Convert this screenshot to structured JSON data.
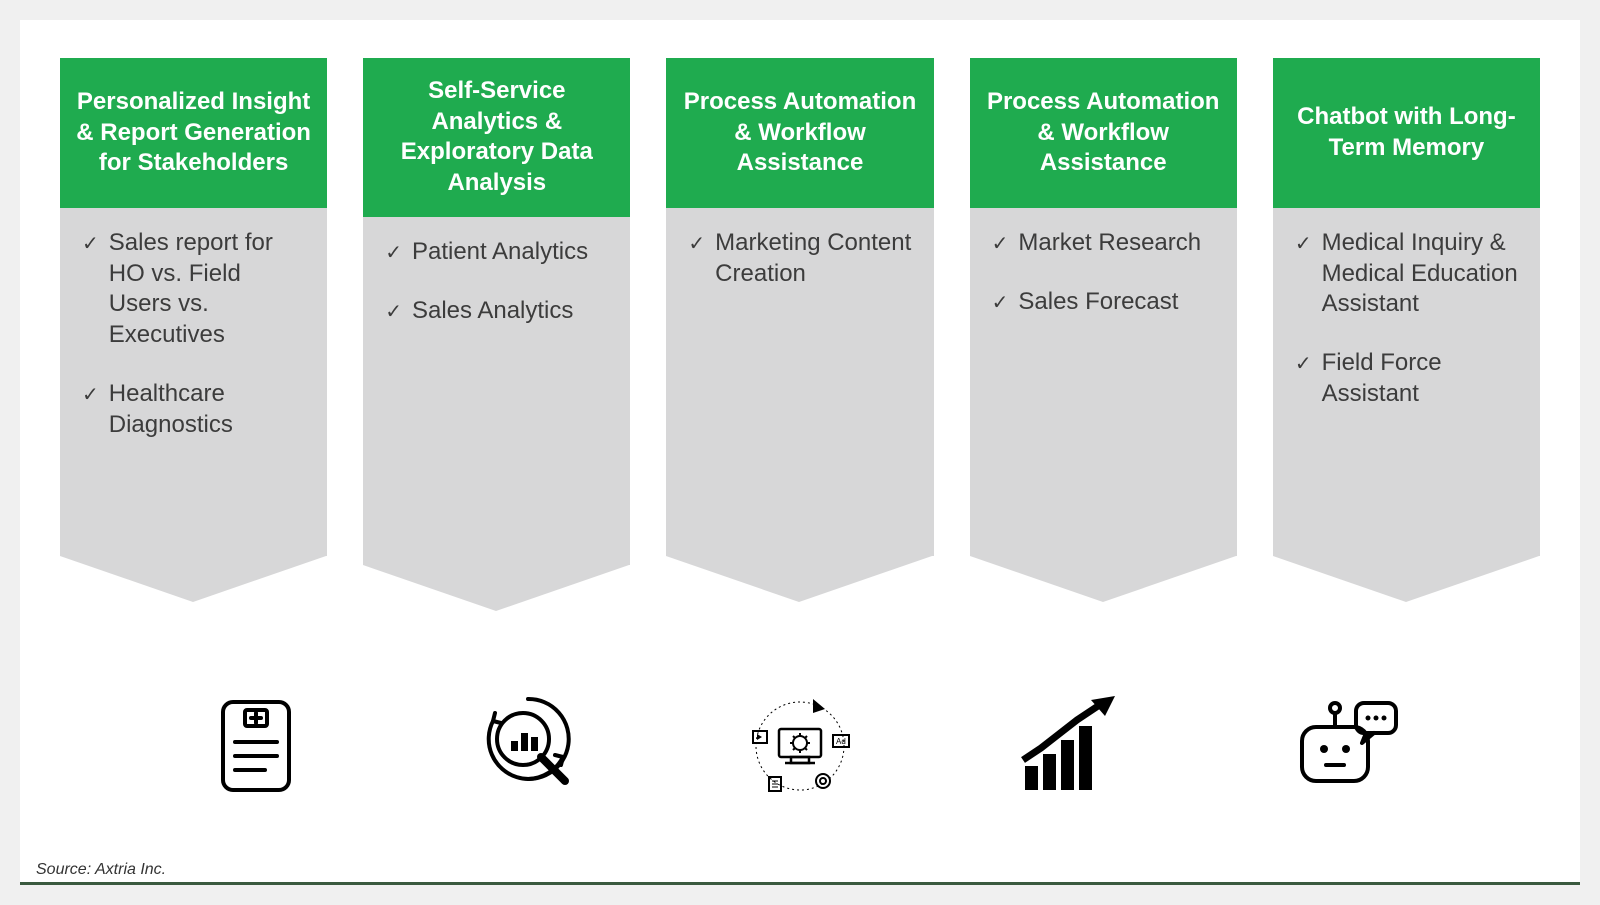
{
  "layout": {
    "page_bg": "#f0f0f0",
    "canvas_bg": "#ffffff",
    "header_bg": "#1fab4f",
    "header_text_color": "#ffffff",
    "body_bg": "#d7d7d8",
    "body_text_color": "#3c3c3c",
    "check_color": "#3c3c3c",
    "source_color": "#333333",
    "bottom_line_color": "#3a5a3f",
    "header_fontsize": 24,
    "body_fontsize": 24,
    "card_count": 5,
    "card_gap": 36,
    "card_body_height": 348,
    "arrow_height": 46
  },
  "cards": [
    {
      "title": "Personalized Insight & Report Generation for Stakeholders",
      "bullets": [
        "Sales report for HO vs. Field Users vs. Executives",
        "Healthcare Diagnostics"
      ],
      "icon": "clipboard-medical"
    },
    {
      "title": "Self-Service Analytics & Exploratory Data Analysis",
      "bullets": [
        "Patient Analytics",
        "Sales Analytics"
      ],
      "icon": "magnifier-chart"
    },
    {
      "title": "Process Automation & Workflow Assistance",
      "bullets": [
        "Marketing Content Creation"
      ],
      "icon": "marketing-gear"
    },
    {
      "title": "Process Automation & Workflow Assistance",
      "bullets": [
        "Market Research",
        "Sales Forecast"
      ],
      "icon": "growth-chart"
    },
    {
      "title": "Chatbot with Long-Term Memory",
      "bullets": [
        "Medical Inquiry & Medical Education Assistant",
        "Field Force Assistant"
      ],
      "icon": "chatbot"
    }
  ],
  "source_text": "Source: Axtria Inc."
}
